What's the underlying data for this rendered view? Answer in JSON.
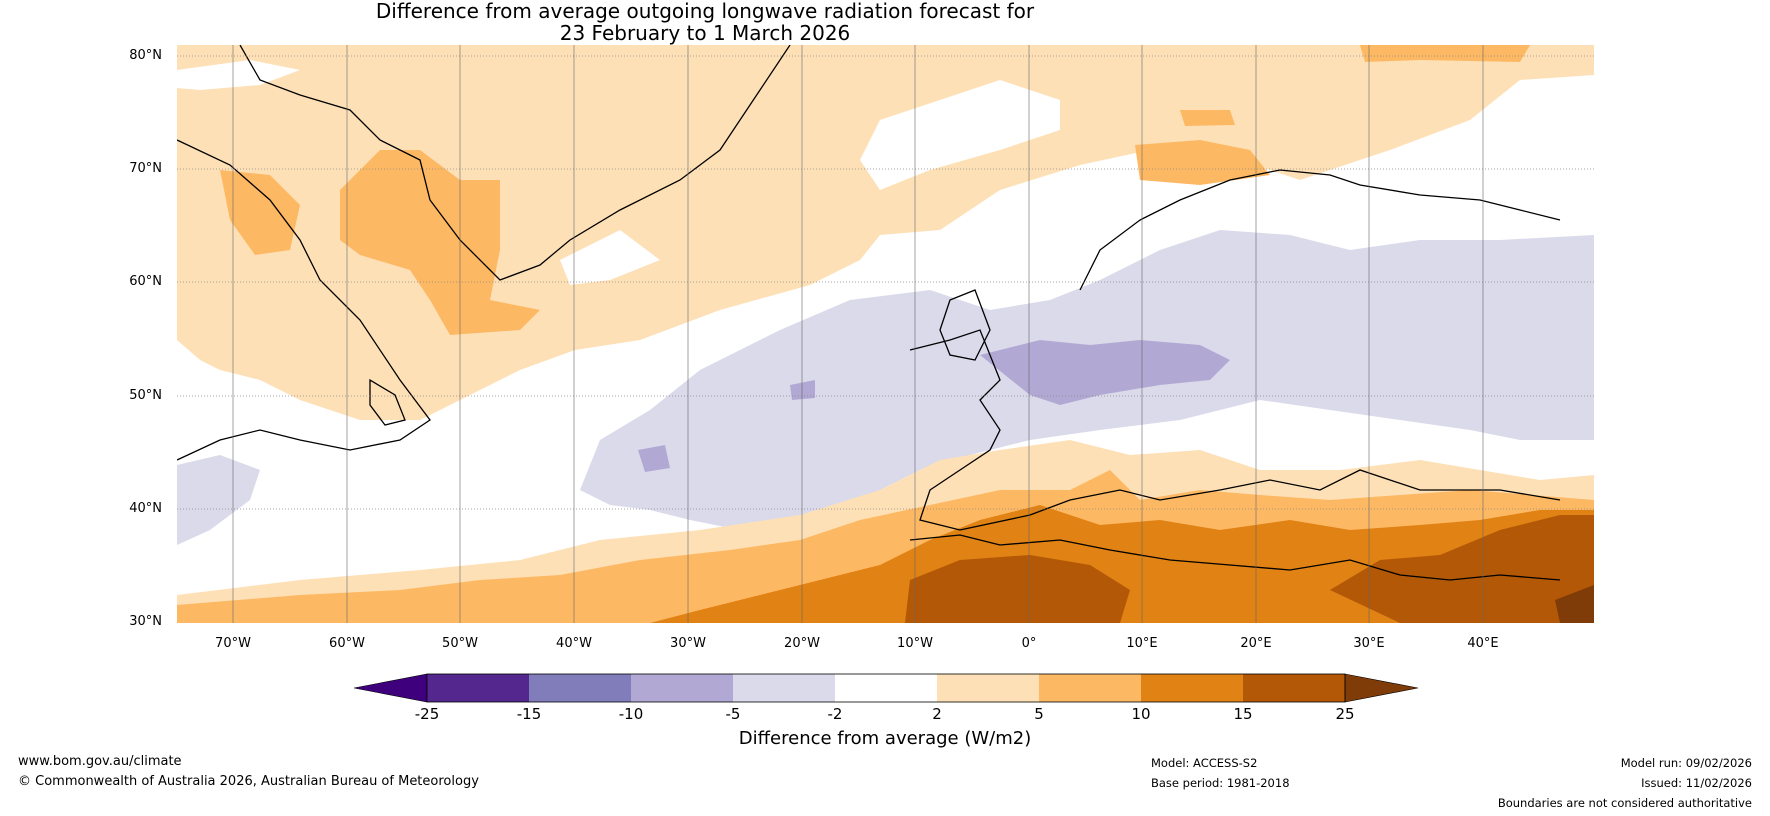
{
  "title": {
    "line1": "Difference from average outgoing longwave radiation forecast for",
    "line2": "23 February to 1 March 2026"
  },
  "axes": {
    "lat_labels": [
      "80°N",
      "70°N",
      "60°N",
      "50°N",
      "40°N",
      "30°N"
    ],
    "lon_labels": [
      "70°W",
      "60°W",
      "50°W",
      "40°W",
      "30°W",
      "20°W",
      "10°W",
      "0°",
      "10°E",
      "20°E",
      "30°E",
      "40°E"
    ]
  },
  "legend": {
    "label": "Difference from average (W/m2)",
    "ticks": [
      "-25",
      "-15",
      "-10",
      "-5",
      "-2",
      "2",
      "5",
      "10",
      "15",
      "25"
    ],
    "colors": [
      "#3f007d",
      "#54278f",
      "#807dba",
      "#b1a9d4",
      "#dadaeb",
      "#ffffff",
      "#fee0b6",
      "#fdb863",
      "#e08214",
      "#b35806",
      "#7f3b08"
    ]
  },
  "footer": {
    "website": "www.bom.gov.au/climate",
    "copyright": "© Commonwealth of Australia 2026, Australian Bureau of Meteorology",
    "model": "Model: ACCESS-S2",
    "base_period": "Base period: 1981-2018",
    "model_run": "Model run: 09/02/2026",
    "issued": "Issued: 11/02/2026",
    "disclaimer": "Boundaries are not considered authoritative"
  }
}
